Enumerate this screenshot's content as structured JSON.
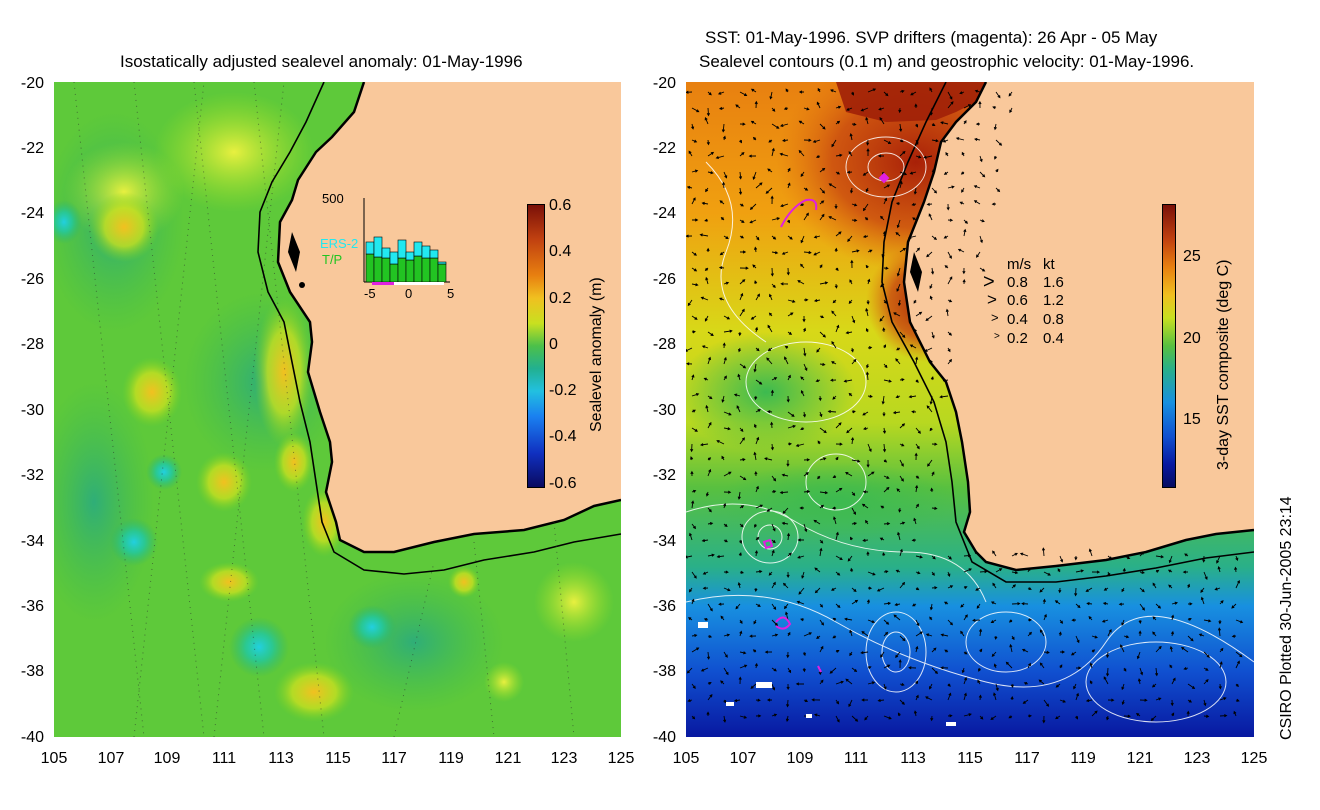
{
  "left_panel": {
    "title": "Isostatically adjusted sealevel anomaly: 01-May-1996",
    "y_ticks": [
      "-20",
      "-22",
      "-24",
      "-26",
      "-28",
      "-30",
      "-32",
      "-34",
      "-36",
      "-38",
      "-40"
    ],
    "x_ticks": [
      "105",
      "107",
      "109",
      "111",
      "113",
      "115",
      "117",
      "119",
      "121",
      "123",
      "125"
    ],
    "colorbar": {
      "label": "Sealevel anomaly (m)",
      "ticks": [
        "0.6",
        "0.4",
        "0.2",
        "0",
        "-0.2",
        "-0.4",
        "-0.6"
      ]
    },
    "inset": {
      "y_max_label": "500",
      "x_ticks": [
        "-5",
        "0",
        "5"
      ],
      "legend_ers": "ERS-2",
      "legend_tp": "T/P",
      "colors": {
        "ers": "#22e8f0",
        "tp": "#22c422"
      }
    }
  },
  "right_panel": {
    "title_line1": "SST: 01-May-1996. SVP drifters (magenta): 26 Apr - 05 May",
    "title_line2": "Sealevel contours (0.1 m) and geostrophic velocity: 01-May-1996.",
    "y_ticks": [
      "-20",
      "-22",
      "-24",
      "-26",
      "-28",
      "-30",
      "-32",
      "-34",
      "-36",
      "-38",
      "-40"
    ],
    "x_ticks": [
      "105",
      "107",
      "109",
      "111",
      "113",
      "115",
      "117",
      "119",
      "121",
      "123",
      "125"
    ],
    "velocity_legend": {
      "header_ms": "m/s",
      "header_kt": "kt",
      "rows": [
        {
          "ms": "0.8",
          "kt": "1.6"
        },
        {
          "ms": "0.6",
          "kt": "1.2"
        },
        {
          "ms": "0.4",
          "kt": "0.8"
        },
        {
          "ms": "0.2",
          "kt": "0.4"
        }
      ]
    },
    "colorbar": {
      "label": "3-day SST composite (deg C)",
      "ticks": [
        "25",
        "20",
        "15"
      ]
    }
  },
  "credit": "CSIRO Plotted 30-Jun-2005 23:14",
  "colors": {
    "land": "#f9c89b",
    "coast": "#000000",
    "drifter": "#e020e0"
  }
}
